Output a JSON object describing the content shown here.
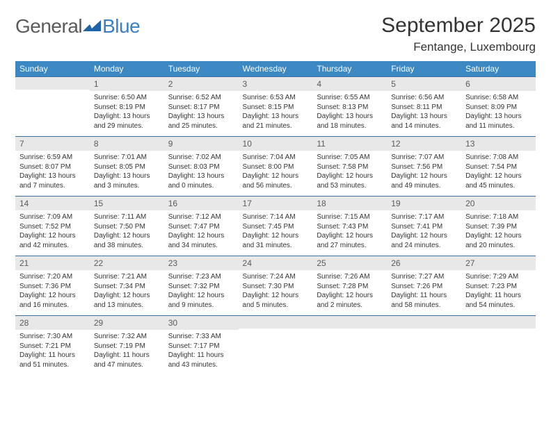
{
  "brand": {
    "part1": "General",
    "part2": "Blue"
  },
  "title": "September 2025",
  "location": "Fentange, Luxembourg",
  "header_bg": "#3b88c3",
  "week_headers": [
    "Sunday",
    "Monday",
    "Tuesday",
    "Wednesday",
    "Thursday",
    "Friday",
    "Saturday"
  ],
  "weeks": [
    [
      {
        "n": "",
        "sunrise": "",
        "sunset": "",
        "day1": "",
        "day2": ""
      },
      {
        "n": "1",
        "sunrise": "Sunrise: 6:50 AM",
        "sunset": "Sunset: 8:19 PM",
        "day1": "Daylight: 13 hours",
        "day2": "and 29 minutes."
      },
      {
        "n": "2",
        "sunrise": "Sunrise: 6:52 AM",
        "sunset": "Sunset: 8:17 PM",
        "day1": "Daylight: 13 hours",
        "day2": "and 25 minutes."
      },
      {
        "n": "3",
        "sunrise": "Sunrise: 6:53 AM",
        "sunset": "Sunset: 8:15 PM",
        "day1": "Daylight: 13 hours",
        "day2": "and 21 minutes."
      },
      {
        "n": "4",
        "sunrise": "Sunrise: 6:55 AM",
        "sunset": "Sunset: 8:13 PM",
        "day1": "Daylight: 13 hours",
        "day2": "and 18 minutes."
      },
      {
        "n": "5",
        "sunrise": "Sunrise: 6:56 AM",
        "sunset": "Sunset: 8:11 PM",
        "day1": "Daylight: 13 hours",
        "day2": "and 14 minutes."
      },
      {
        "n": "6",
        "sunrise": "Sunrise: 6:58 AM",
        "sunset": "Sunset: 8:09 PM",
        "day1": "Daylight: 13 hours",
        "day2": "and 11 minutes."
      }
    ],
    [
      {
        "n": "7",
        "sunrise": "Sunrise: 6:59 AM",
        "sunset": "Sunset: 8:07 PM",
        "day1": "Daylight: 13 hours",
        "day2": "and 7 minutes."
      },
      {
        "n": "8",
        "sunrise": "Sunrise: 7:01 AM",
        "sunset": "Sunset: 8:05 PM",
        "day1": "Daylight: 13 hours",
        "day2": "and 3 minutes."
      },
      {
        "n": "9",
        "sunrise": "Sunrise: 7:02 AM",
        "sunset": "Sunset: 8:03 PM",
        "day1": "Daylight: 13 hours",
        "day2": "and 0 minutes."
      },
      {
        "n": "10",
        "sunrise": "Sunrise: 7:04 AM",
        "sunset": "Sunset: 8:00 PM",
        "day1": "Daylight: 12 hours",
        "day2": "and 56 minutes."
      },
      {
        "n": "11",
        "sunrise": "Sunrise: 7:05 AM",
        "sunset": "Sunset: 7:58 PM",
        "day1": "Daylight: 12 hours",
        "day2": "and 53 minutes."
      },
      {
        "n": "12",
        "sunrise": "Sunrise: 7:07 AM",
        "sunset": "Sunset: 7:56 PM",
        "day1": "Daylight: 12 hours",
        "day2": "and 49 minutes."
      },
      {
        "n": "13",
        "sunrise": "Sunrise: 7:08 AM",
        "sunset": "Sunset: 7:54 PM",
        "day1": "Daylight: 12 hours",
        "day2": "and 45 minutes."
      }
    ],
    [
      {
        "n": "14",
        "sunrise": "Sunrise: 7:09 AM",
        "sunset": "Sunset: 7:52 PM",
        "day1": "Daylight: 12 hours",
        "day2": "and 42 minutes."
      },
      {
        "n": "15",
        "sunrise": "Sunrise: 7:11 AM",
        "sunset": "Sunset: 7:50 PM",
        "day1": "Daylight: 12 hours",
        "day2": "and 38 minutes."
      },
      {
        "n": "16",
        "sunrise": "Sunrise: 7:12 AM",
        "sunset": "Sunset: 7:47 PM",
        "day1": "Daylight: 12 hours",
        "day2": "and 34 minutes."
      },
      {
        "n": "17",
        "sunrise": "Sunrise: 7:14 AM",
        "sunset": "Sunset: 7:45 PM",
        "day1": "Daylight: 12 hours",
        "day2": "and 31 minutes."
      },
      {
        "n": "18",
        "sunrise": "Sunrise: 7:15 AM",
        "sunset": "Sunset: 7:43 PM",
        "day1": "Daylight: 12 hours",
        "day2": "and 27 minutes."
      },
      {
        "n": "19",
        "sunrise": "Sunrise: 7:17 AM",
        "sunset": "Sunset: 7:41 PM",
        "day1": "Daylight: 12 hours",
        "day2": "and 24 minutes."
      },
      {
        "n": "20",
        "sunrise": "Sunrise: 7:18 AM",
        "sunset": "Sunset: 7:39 PM",
        "day1": "Daylight: 12 hours",
        "day2": "and 20 minutes."
      }
    ],
    [
      {
        "n": "21",
        "sunrise": "Sunrise: 7:20 AM",
        "sunset": "Sunset: 7:36 PM",
        "day1": "Daylight: 12 hours",
        "day2": "and 16 minutes."
      },
      {
        "n": "22",
        "sunrise": "Sunrise: 7:21 AM",
        "sunset": "Sunset: 7:34 PM",
        "day1": "Daylight: 12 hours",
        "day2": "and 13 minutes."
      },
      {
        "n": "23",
        "sunrise": "Sunrise: 7:23 AM",
        "sunset": "Sunset: 7:32 PM",
        "day1": "Daylight: 12 hours",
        "day2": "and 9 minutes."
      },
      {
        "n": "24",
        "sunrise": "Sunrise: 7:24 AM",
        "sunset": "Sunset: 7:30 PM",
        "day1": "Daylight: 12 hours",
        "day2": "and 5 minutes."
      },
      {
        "n": "25",
        "sunrise": "Sunrise: 7:26 AM",
        "sunset": "Sunset: 7:28 PM",
        "day1": "Daylight: 12 hours",
        "day2": "and 2 minutes."
      },
      {
        "n": "26",
        "sunrise": "Sunrise: 7:27 AM",
        "sunset": "Sunset: 7:26 PM",
        "day1": "Daylight: 11 hours",
        "day2": "and 58 minutes."
      },
      {
        "n": "27",
        "sunrise": "Sunrise: 7:29 AM",
        "sunset": "Sunset: 7:23 PM",
        "day1": "Daylight: 11 hours",
        "day2": "and 54 minutes."
      }
    ],
    [
      {
        "n": "28",
        "sunrise": "Sunrise: 7:30 AM",
        "sunset": "Sunset: 7:21 PM",
        "day1": "Daylight: 11 hours",
        "day2": "and 51 minutes."
      },
      {
        "n": "29",
        "sunrise": "Sunrise: 7:32 AM",
        "sunset": "Sunset: 7:19 PM",
        "day1": "Daylight: 11 hours",
        "day2": "and 47 minutes."
      },
      {
        "n": "30",
        "sunrise": "Sunrise: 7:33 AM",
        "sunset": "Sunset: 7:17 PM",
        "day1": "Daylight: 11 hours",
        "day2": "and 43 minutes."
      },
      {
        "n": "",
        "sunrise": "",
        "sunset": "",
        "day1": "",
        "day2": ""
      },
      {
        "n": "",
        "sunrise": "",
        "sunset": "",
        "day1": "",
        "day2": ""
      },
      {
        "n": "",
        "sunrise": "",
        "sunset": "",
        "day1": "",
        "day2": ""
      },
      {
        "n": "",
        "sunrise": "",
        "sunset": "",
        "day1": "",
        "day2": ""
      }
    ]
  ]
}
